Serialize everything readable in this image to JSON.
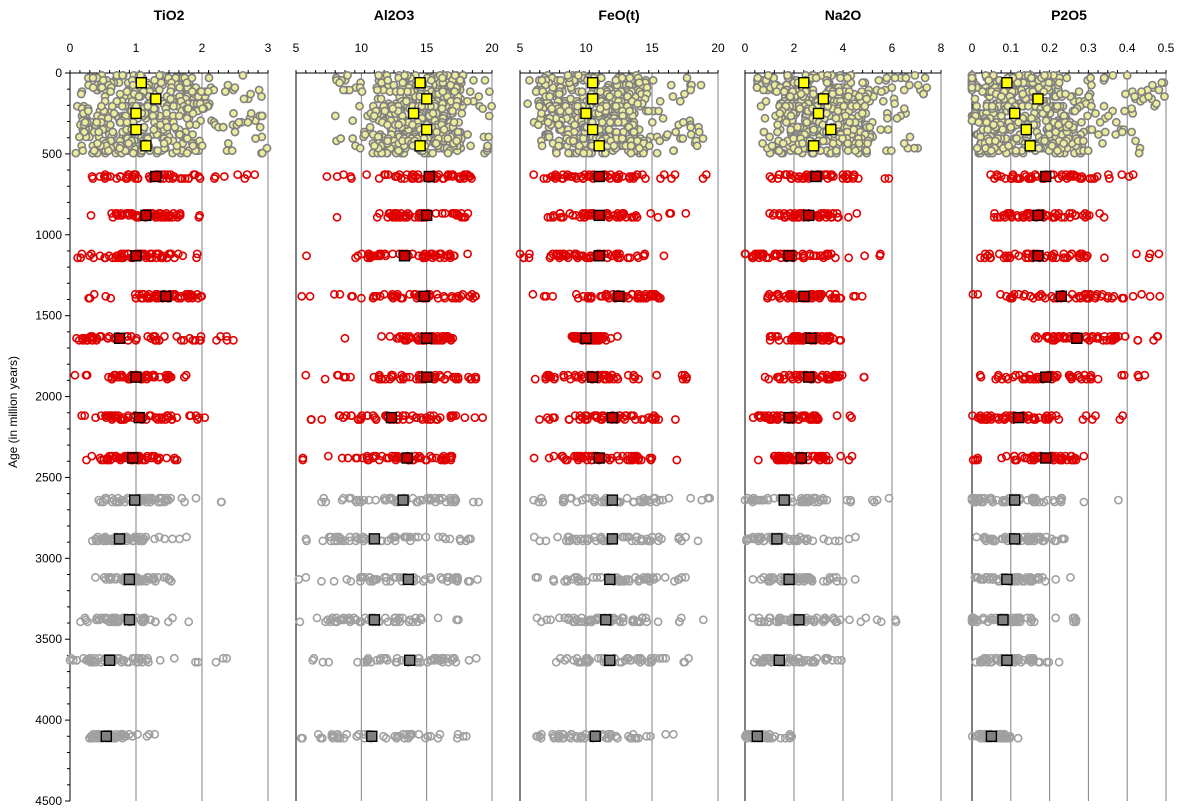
{
  "chart_data": {
    "type": "scatter",
    "ylabel": "Age (in million years)",
    "ylim": [
      0,
      4500
    ],
    "y_ticks": [
      0,
      500,
      1000,
      1500,
      2000,
      2500,
      3000,
      3500,
      4000,
      4500
    ],
    "y_reversed": true,
    "grid": "vertical lines at x ticks",
    "colors": {
      "phanerozoic_fill": "#ecec9c",
      "phanerozoic_mean": "#ffff00",
      "proterozoic_ring": "#e00000",
      "proterozoic_mean": "#cc0000",
      "archean_ring": "#a0a0a0",
      "archean_mean": "#808080",
      "grid": "#808080"
    },
    "mean_ages": [
      60,
      160,
      250,
      350,
      450,
      640,
      880,
      1130,
      1380,
      1640,
      1880,
      2130,
      2380,
      2640,
      2880,
      3130,
      3380,
      3630,
      4100
    ],
    "panels": [
      {
        "title": "TiO2",
        "xlim": [
          0,
          3
        ],
        "x_ticks": [
          "0",
          "1",
          "2",
          "3"
        ],
        "means": [
          1.08,
          1.3,
          1.0,
          1.0,
          1.15,
          1.3,
          1.15,
          1.0,
          1.45,
          0.75,
          1.0,
          1.05,
          0.95,
          0.98,
          0.75,
          0.9,
          0.9,
          0.6,
          0.55
        ],
        "spread": [
          0.05,
          3.0,
          0.05,
          3.0,
          0.05,
          3.0,
          0.05,
          3.0,
          0.05,
          3.0,
          0.1,
          3.0,
          0.1,
          2.0,
          0.1,
          2.0,
          0.1,
          2.1,
          0.1,
          2.5,
          0.05,
          2.0,
          0.1,
          2.1,
          0.2,
          1.8,
          0.3,
          2.3,
          0.3,
          1.8,
          0.3,
          1.7,
          0.1,
          1.8,
          0.3,
          2.5,
          0.3,
          1.3
        ]
      },
      {
        "title": "Al2O3",
        "xlim": [
          5,
          20
        ],
        "x_ticks": [
          "5",
          "10",
          "15",
          "20"
        ],
        "means": [
          14.5,
          15.0,
          14.0,
          15.0,
          14.5,
          15.2,
          15.0,
          13.3,
          14.8,
          15.0,
          15.0,
          12.3,
          13.5,
          13.2,
          11.0,
          13.6,
          11.0,
          13.7,
          10.8
        ],
        "spread": [
          8.0,
          20.0,
          10.0,
          20.0,
          8.0,
          20.0,
          10.0,
          20.0,
          8.0,
          20.0,
          7.0,
          20.0,
          7.5,
          18.5,
          5.5,
          19.5,
          5.0,
          20.0,
          8.5,
          17.0,
          5.5,
          19.5,
          5.5,
          19.5,
          5.0,
          17.5,
          5.0,
          20.0,
          5.5,
          18.5,
          5.0,
          19.0,
          5.0,
          18.5,
          6.0,
          20.0,
          5.0,
          20.0
        ]
      },
      {
        "title": "FeO(t)",
        "xlim": [
          5,
          20
        ],
        "x_ticks": [
          "5",
          "10",
          "15",
          "20"
        ],
        "means": [
          10.5,
          10.5,
          10.0,
          10.5,
          11.0,
          11.0,
          11.0,
          11.0,
          12.5,
          10.0,
          10.5,
          12.0,
          11.0,
          12.0,
          12.0,
          11.8,
          11.5,
          11.8,
          10.7
        ],
        "spread": [
          5.0,
          20.0,
          5.0,
          20.0,
          6.0,
          19.0,
          6.0,
          19.0,
          6.0,
          19.0,
          6.0,
          19.5,
          7.0,
          18.0,
          5.0,
          18.0,
          5.5,
          18.0,
          9.0,
          13.0,
          6.0,
          19.0,
          6.0,
          18.0,
          6.0,
          17.0,
          6.0,
          20.0,
          6.0,
          19.0,
          5.0,
          18.0,
          6.0,
          19.0,
          7.0,
          19.5,
          6.0,
          18.0
        ]
      },
      {
        "title": "Na2O",
        "xlim": [
          0,
          8
        ],
        "x_ticks": [
          "0",
          "2",
          "4",
          "6",
          "8"
        ],
        "means": [
          2.4,
          3.2,
          3.0,
          3.5,
          2.8,
          2.9,
          2.6,
          1.8,
          2.4,
          2.7,
          2.6,
          1.8,
          2.3,
          1.6,
          1.3,
          1.8,
          2.2,
          1.4,
          0.5
        ],
        "spread": [
          0.5,
          7.5,
          0.5,
          7.5,
          0.5,
          7.0,
          0.5,
          7.0,
          0.5,
          7.5,
          0.3,
          6.0,
          0.5,
          5.0,
          0.1,
          7.0,
          0.5,
          5.5,
          1.0,
          4.0,
          0.2,
          5.0,
          0.2,
          5.0,
          0.3,
          4.5,
          0.1,
          6.5,
          0.2,
          5.0,
          0.2,
          4.5,
          0.2,
          6.5,
          0.2,
          4.0,
          0.2,
          2.0
        ]
      },
      {
        "title": "P2O5",
        "xlim": [
          0,
          0.5
        ],
        "x_ticks": [
          "0",
          "0.1",
          "0.2",
          "0.3",
          "0.4",
          "0.5"
        ],
        "means": [
          0.09,
          0.17,
          0.11,
          0.14,
          0.15,
          0.19,
          0.17,
          0.17,
          0.23,
          0.27,
          0.19,
          0.12,
          0.19,
          0.11,
          0.11,
          0.09,
          0.08,
          0.09,
          0.05
        ],
        "spread": [
          0.0,
          0.5,
          0.0,
          0.5,
          0.0,
          0.45,
          0.0,
          0.45,
          0.0,
          0.5,
          0.0,
          0.5,
          0.0,
          0.45,
          0.0,
          0.5,
          0.0,
          0.5,
          0.1,
          0.5,
          0.0,
          0.45,
          0.0,
          0.4,
          0.0,
          0.3,
          0.0,
          0.45,
          0.0,
          0.3,
          0.0,
          0.3,
          0.0,
          0.3,
          0.0,
          0.25,
          0.0,
          0.12
        ]
      }
    ]
  }
}
